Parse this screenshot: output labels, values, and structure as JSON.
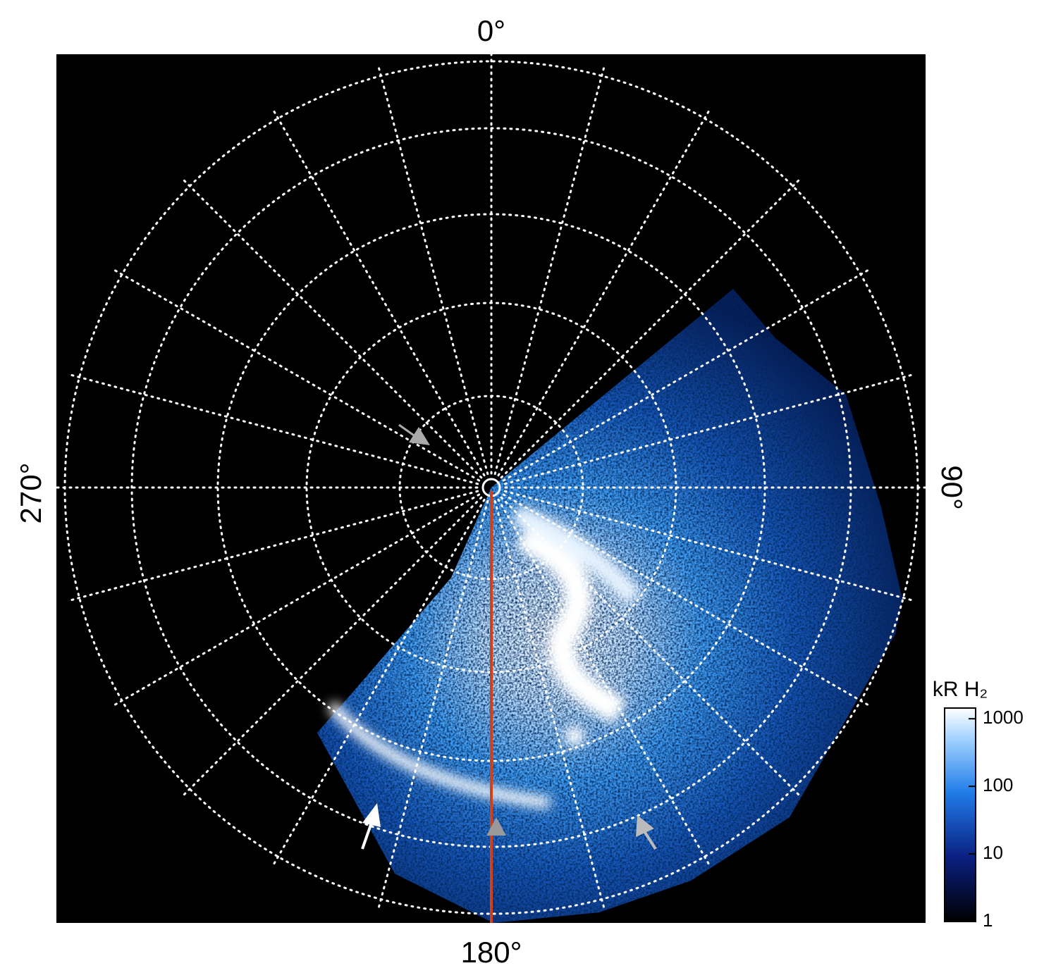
{
  "map": {
    "labels": {
      "top": "0°",
      "right": "90°",
      "bottom": "180°",
      "left": "270°"
    },
    "colorbar": {
      "label": "kR H₂",
      "log": true,
      "ylim": [
        1,
        1440
      ],
      "yticks": [
        1,
        10,
        100,
        1000
      ]
    }
  }
}
